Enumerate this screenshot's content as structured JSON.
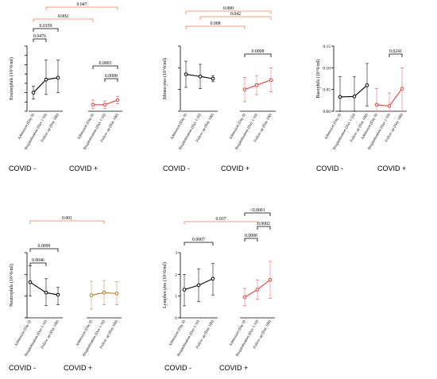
{
  "groups": [
    "COVID -",
    "COVID +"
  ],
  "timepoints": [
    "Admission (Day 0)",
    "Hospitalization (Day 1-10)",
    "Follow up (Day 100)"
  ],
  "colors": {
    "neg": "#000000",
    "pos_red": "#e8413b",
    "pos_brown": "#b5792a",
    "bracket_red": "#f08060",
    "axis": "#000000"
  },
  "chart_data": [
    {
      "type": "line",
      "ylabel": "Eosinophils (10^6/ml)",
      "ylim": [
        -0.1,
        0.6
      ],
      "yticks": [
        -0.1,
        0.0,
        0.1,
        0.2,
        0.3,
        0.4,
        0.5,
        0.6
      ],
      "ytick_labels": [
        "",
        "",
        "",
        "",
        "",
        "",
        "",
        ""
      ],
      "series": [
        {
          "group": "COVID -",
          "values": [
            0.1,
            0.24,
            0.26
          ],
          "lower": [
            0.03,
            0.08,
            0.1
          ],
          "upper": [
            0.17,
            0.45,
            0.45
          ]
        },
        {
          "group": "COVID +",
          "values": [
            -0.03,
            -0.03,
            0.02
          ],
          "lower": [
            -0.07,
            -0.07,
            -0.02
          ],
          "upper": [
            0.02,
            0.01,
            0.06
          ]
        }
      ],
      "comparisons": [
        {
          "label": "0.0476",
          "from": [
            0,
            0
          ],
          "to": [
            0,
            1
          ],
          "color": "black"
        },
        {
          "label": "0.0159",
          "from": [
            0,
            0
          ],
          "to": [
            0,
            2
          ],
          "color": "black"
        },
        {
          "label": "0.002",
          "from": [
            0,
            0
          ],
          "to": [
            1,
            0
          ],
          "color": "red"
        },
        {
          "label": "0.047",
          "from": [
            0,
            1
          ],
          "to": [
            1,
            2
          ],
          "color": "red"
        },
        {
          "label": "0.0003",
          "from": [
            1,
            0
          ],
          "to": [
            1,
            2
          ],
          "color": "black"
        },
        {
          "label": "0.0008",
          "from": [
            1,
            1
          ],
          "to": [
            1,
            2
          ],
          "color": "black"
        }
      ]
    },
    {
      "type": "line",
      "ylabel": "Monocytes (10^6/ml)",
      "ylim": [
        0,
        1.5
      ],
      "yticks": [
        0.0,
        0.5,
        1.0,
        1.5
      ],
      "ytick_labels": [
        "",
        "",
        "",
        ""
      ],
      "series": [
        {
          "group": "COVID -",
          "values": [
            0.85,
            0.8,
            0.75
          ],
          "lower": [
            0.55,
            0.52,
            0.68
          ],
          "upper": [
            1.15,
            1.08,
            0.82
          ]
        },
        {
          "group": "COVID +",
          "values": [
            0.5,
            0.6,
            0.72
          ],
          "lower": [
            0.22,
            0.38,
            0.45
          ],
          "upper": [
            0.78,
            0.82,
            1.0
          ]
        }
      ],
      "comparisons": [
        {
          "label": "0.000",
          "from": [
            0,
            0
          ],
          "to": [
            1,
            2
          ],
          "color": "red"
        },
        {
          "label": "0.042",
          "from": [
            0,
            1
          ],
          "to": [
            1,
            2
          ],
          "color": "red"
        },
        {
          "label": "0.008",
          "from": [
            0,
            0
          ],
          "to": [
            1,
            0
          ],
          "color": "red"
        },
        {
          "label": "0.0008",
          "from": [
            1,
            0
          ],
          "to": [
            1,
            2
          ],
          "color": "black"
        }
      ]
    },
    {
      "type": "line",
      "ylabel": "Basophils (10^6/ml)",
      "ylim": [
        0,
        0.15
      ],
      "yticks": [
        0.0,
        0.05,
        0.1,
        0.15
      ],
      "ytick_labels": [
        "0.00",
        "0.05",
        "0.10",
        "0.15"
      ],
      "series": [
        {
          "group": "COVID -",
          "values": [
            0.033,
            0.034,
            0.06
          ],
          "lower": [
            0.0,
            0.0,
            0.012
          ],
          "upper": [
            0.08,
            0.08,
            0.11
          ]
        },
        {
          "group": "COVID +",
          "values": [
            0.015,
            0.012,
            0.052
          ],
          "lower": [
            0.0,
            0.0,
            0.0
          ],
          "upper": [
            0.052,
            0.042,
            0.1
          ]
        }
      ],
      "comparisons": [
        {
          "label": "0.0241",
          "from": [
            1,
            1
          ],
          "to": [
            1,
            2
          ],
          "color": "black"
        }
      ]
    },
    {
      "type": "line",
      "ylabel": "Neutrophils (10^6/ml)",
      "ylim": [
        0,
        15
      ],
      "yticks": [
        0,
        5,
        10,
        15
      ],
      "ytick_labels": [
        "",
        "",
        "",
        ""
      ],
      "series": [
        {
          "group": "COVID -",
          "values": [
            8.2,
            5.8,
            5.3
          ],
          "lower": [
            5.0,
            2.8,
            3.0
          ],
          "upper": [
            12.0,
            9.0,
            7.0
          ]
        },
        {
          "group": "COVID +",
          "values": [
            5.2,
            5.8,
            5.6
          ],
          "lower": [
            2.0,
            3.0,
            3.0
          ],
          "upper": [
            8.4,
            8.6,
            8.3
          ]
        }
      ],
      "comparisons": [
        {
          "label": "0.0046",
          "from": [
            0,
            0
          ],
          "to": [
            0,
            1
          ],
          "color": "black"
        },
        {
          "label": "0.0099",
          "from": [
            0,
            0
          ],
          "to": [
            0,
            2
          ],
          "color": "black"
        },
        {
          "label": "0.001",
          "from": [
            0,
            0
          ],
          "to": [
            1,
            1
          ],
          "color": "red"
        }
      ]
    },
    {
      "type": "line",
      "ylabel": "Lymphocytes (10^6/ml)",
      "ylim": [
        0,
        3
      ],
      "yticks": [
        0,
        1,
        2,
        3
      ],
      "ytick_labels": [
        "0",
        "1",
        "2",
        "3"
      ],
      "series": [
        {
          "group": "COVID -",
          "values": [
            1.3,
            1.5,
            1.8
          ],
          "lower": [
            0.55,
            0.75,
            1.05
          ],
          "upper": [
            2.0,
            2.25,
            2.5
          ]
        },
        {
          "group": "COVID +",
          "values": [
            0.95,
            1.3,
            1.75
          ],
          "lower": [
            0.55,
            0.85,
            0.9
          ],
          "upper": [
            1.35,
            1.75,
            2.6
          ]
        }
      ],
      "comparisons": [
        {
          "label": "0.037",
          "from": [
            0,
            0
          ],
          "to": [
            1,
            1
          ],
          "color": "red"
        },
        {
          "label": "0.0007",
          "from": [
            0,
            0
          ],
          "to": [
            0,
            2
          ],
          "color": "black"
        },
        {
          "label": "<0.0001",
          "from": [
            1,
            0
          ],
          "to": [
            1,
            2
          ],
          "color": "black"
        },
        {
          "label": "0.0002",
          "from": [
            1,
            1
          ],
          "to": [
            1,
            2
          ],
          "color": "black"
        },
        {
          "label": "0.0008",
          "from": [
            1,
            0
          ],
          "to": [
            1,
            1
          ],
          "color": "black"
        }
      ]
    }
  ]
}
